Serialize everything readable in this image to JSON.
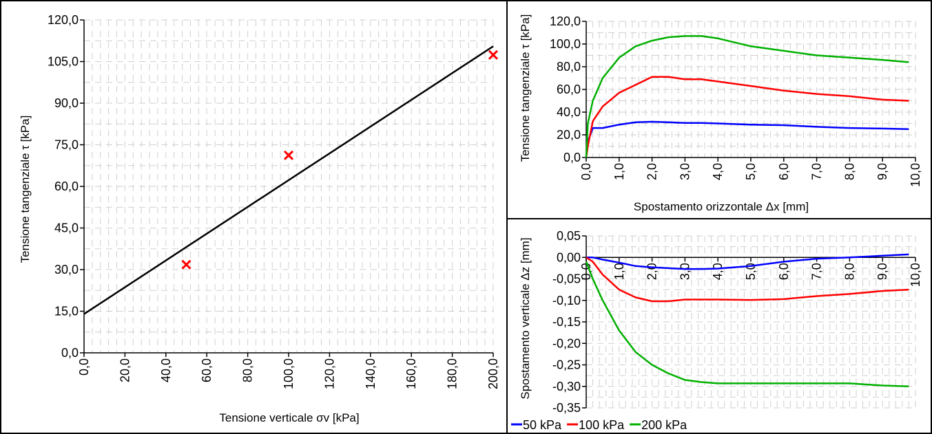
{
  "chart_data": [
    {
      "type": "scatter",
      "xlabel": "Tensione verticale σv [kPa]",
      "ylabel": "Tensione tangenziale τ [kPa]",
      "xlim": [
        0,
        200
      ],
      "ylim": [
        0,
        120
      ],
      "x_ticks": [
        "0,0",
        "20,0",
        "40,0",
        "60,0",
        "80,0",
        "100,0",
        "120,0",
        "140,0",
        "160,0",
        "180,0",
        "200,0"
      ],
      "y_ticks": [
        "0,0",
        "15,0",
        "30,0",
        "45,0",
        "60,0",
        "75,0",
        "90,0",
        "105,0",
        "120,0"
      ],
      "grid": true,
      "points": [
        {
          "x": 50,
          "y": 31.8
        },
        {
          "x": 100,
          "y": 71.2
        },
        {
          "x": 200,
          "y": 107.4
        }
      ],
      "marker_color": "#ff0000",
      "fit_line": {
        "x": [
          0,
          200
        ],
        "y": [
          14.0,
          110.5
        ],
        "color": "#000000"
      }
    },
    {
      "type": "line",
      "xlabel": "Spostamento orizzontale Δx [mm]",
      "ylabel": "Tensione tangenziale τ [kPa]",
      "xlim": [
        0,
        10
      ],
      "ylim": [
        0,
        120
      ],
      "x_ticks": [
        "0,0",
        "1,0",
        "2,0",
        "3,0",
        "4,0",
        "5,0",
        "6,0",
        "7,0",
        "8,0",
        "9,0",
        "10,0"
      ],
      "y_ticks": [
        "0,0",
        "20,0",
        "40,0",
        "60,0",
        "80,0",
        "100,0",
        "120,0"
      ],
      "grid": true,
      "x": [
        0,
        0.05,
        0.2,
        0.5,
        1,
        1.5,
        2,
        2.5,
        3,
        3.5,
        4,
        5,
        6,
        7,
        8,
        9,
        9.8
      ],
      "series": [
        {
          "name": "50 kPa",
          "color": "#0000ff",
          "values": [
            0,
            14,
            26,
            26,
            29,
            31,
            31.5,
            31,
            30.5,
            30.5,
            30,
            29,
            28.5,
            27,
            26,
            25.5,
            25
          ]
        },
        {
          "name": "100 kPa",
          "color": "#ff0000",
          "values": [
            0,
            10,
            32,
            45,
            57,
            64,
            71,
            71,
            69,
            69,
            67,
            63,
            59,
            56,
            54,
            51,
            50
          ]
        },
        {
          "name": "200 kPa",
          "color": "#00b000",
          "values": [
            0,
            30,
            50,
            70,
            88,
            98,
            103,
            106,
            107,
            107,
            105,
            98,
            94,
            90,
            88,
            86,
            84
          ]
        }
      ]
    },
    {
      "type": "line",
      "xlabel": "",
      "ylabel": "Spostamento verticale Δz [mm]",
      "xlim": [
        0,
        10
      ],
      "ylim": [
        -0.35,
        0.05
      ],
      "x_ticks": [
        "0,0",
        "1,0",
        "2,0",
        "3,0",
        "4,0",
        "5,0",
        "6,0",
        "7,0",
        "8,0",
        "9,0",
        "10,0"
      ],
      "y_ticks": [
        "0,05",
        "0,00",
        "-0,05",
        "-0,10",
        "-0,15",
        "-0,20",
        "-0,25",
        "-0,30",
        "-0,35"
      ],
      "grid": true,
      "legend": "bottom",
      "x": [
        0,
        0.2,
        0.5,
        1,
        1.5,
        2,
        2.5,
        3,
        3.5,
        4,
        5,
        6,
        7,
        8,
        9,
        9.8
      ],
      "series": [
        {
          "name": "50 kPa",
          "color": "#0000ff",
          "values": [
            0,
            0,
            -0.005,
            -0.012,
            -0.02,
            -0.023,
            -0.025,
            -0.027,
            -0.027,
            -0.026,
            -0.02,
            -0.01,
            -0.003,
            0,
            0.004,
            0.007
          ]
        },
        {
          "name": "100 kPa",
          "color": "#ff0000",
          "values": [
            0,
            -0.01,
            -0.04,
            -0.075,
            -0.093,
            -0.102,
            -0.102,
            -0.098,
            -0.098,
            -0.098,
            -0.099,
            -0.097,
            -0.09,
            -0.085,
            -0.078,
            -0.075
          ]
        },
        {
          "name": "200 kPa",
          "color": "#00b000",
          "values": [
            -0.01,
            -0.05,
            -0.1,
            -0.17,
            -0.22,
            -0.25,
            -0.27,
            -0.285,
            -0.29,
            -0.293,
            -0.293,
            -0.293,
            -0.293,
            -0.293,
            -0.298,
            -0.3
          ]
        }
      ]
    }
  ]
}
